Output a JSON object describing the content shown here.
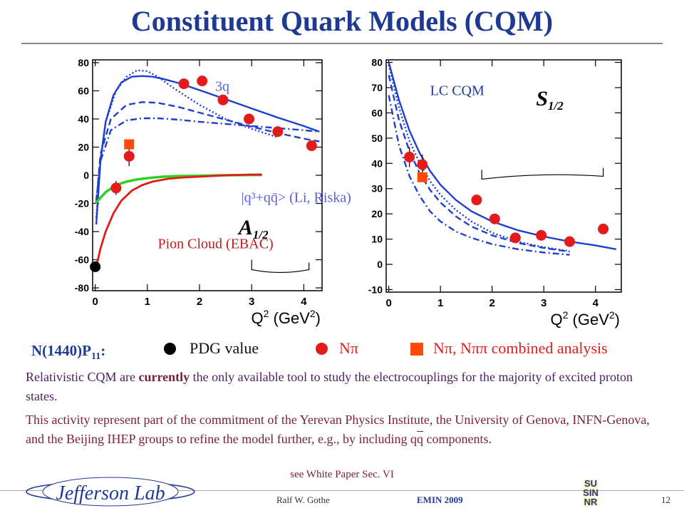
{
  "slide": {
    "title": "Constituent Quark Models (CQM)",
    "footer_author": "Ralf  W. Gothe",
    "footer_conf": "EMIN 2009",
    "footer_page": "12",
    "logo_text": "Jefferson Lab",
    "logo2_lines": [
      "SU",
      "SIN",
      "NR"
    ]
  },
  "legend": {
    "state_label": "N(1440)P",
    "state_sub": "11",
    "state_colon": ":",
    "pdg": "PDG value",
    "npi": "Nπ",
    "combined": "Nπ, Nππ combined analysis"
  },
  "text": {
    "para1_a": "Relativistic CQM are ",
    "para1_bold": "currently",
    "para1_b": " the only available tool to study the electrocouplings for the majority of excited proton states.",
    "para2_a": "This activity represent part of the commitment of the Yerevan Physics Institute, the University of Genova, INFN-Genova, and the Beijing IHEP groups to refine the model further, e.g., by including q",
    "para2_qbar": "q",
    "para2_b": " components.",
    "white_paper": "see White Paper Sec. VI"
  },
  "colors": {
    "title": "#1f3a93",
    "model": "#1f3fd0",
    "red": "#e31b1b",
    "green": "#2ed11b",
    "npipi": "#ff4a0a"
  },
  "chart_data": [
    {
      "type": "line",
      "amplitude": "A1/2",
      "amp_main": "A",
      "amp_sub": "1/2",
      "x_label": "Q",
      "x_sup": "2",
      "x_unit_pre": " (GeV",
      "x_unit_sup": "2",
      "x_unit_post": ")",
      "xlim": [
        -0.05,
        4.35
      ],
      "ylim": [
        -82,
        82
      ],
      "xticks": [
        0,
        1,
        2,
        3,
        4
      ],
      "yticks": [
        -80,
        -60,
        -40,
        -20,
        0,
        20,
        40,
        60,
        80
      ],
      "tick_labels_x": [
        "0",
        "1",
        "2",
        "3",
        "4"
      ],
      "tick_labels_y": [
        "-80",
        "-60",
        "-40",
        "-20",
        "0",
        "20",
        "40",
        "60",
        "80"
      ],
      "annotations": [
        {
          "text": "3q",
          "x": 6.5,
          "y": 60,
          "color": "#5a5ee0"
        },
        {
          "text": "|q³+qq̄> (Li, Riska)",
          "x": 2.8,
          "y": -19,
          "color": "#5a5ee0"
        },
        {
          "text": "Pion Cloud (EBAC)",
          "x": 1.2,
          "y": -52,
          "color": "#c01b1b"
        }
      ],
      "series": [
        {
          "style": "solid",
          "color": "#1f3fd0",
          "x": [
            0.02,
            0.1,
            0.2,
            0.35,
            0.5,
            0.7,
            0.9,
            1.1,
            1.3,
            1.6,
            2,
            2.5,
            3,
            3.5,
            4,
            4.3
          ],
          "y": [
            -35,
            10,
            38,
            57,
            66,
            70,
            70.5,
            70,
            68.5,
            65.5,
            60.5,
            54,
            47.5,
            41,
            35,
            31
          ]
        },
        {
          "style": "dotted",
          "color": "#1f3fd0",
          "x": [
            0.02,
            0.1,
            0.2,
            0.4,
            0.6,
            0.8,
            1,
            1.2,
            1.5,
            2,
            2.5,
            3,
            3.5
          ],
          "y": [
            -30,
            12,
            38,
            60,
            70,
            74.5,
            74,
            70,
            62,
            50,
            40,
            33,
            27
          ]
        },
        {
          "style": "dashed",
          "color": "#1f3fd0",
          "x": [
            0.02,
            0.1,
            0.3,
            0.6,
            0.9,
            1.2,
            1.6,
            2,
            2.5,
            3,
            3.5,
            4,
            4.3
          ],
          "y": [
            -20,
            15,
            40,
            50,
            52,
            51.5,
            48.5,
            44.5,
            39.5,
            34.5,
            30,
            26,
            24
          ]
        },
        {
          "style": "dashdot",
          "color": "#1f3fd0",
          "x": [
            0.02,
            0.1,
            0.3,
            0.6,
            0.9,
            1.2,
            1.6,
            2,
            2.5,
            3,
            3.5,
            4,
            4.3
          ],
          "y": [
            -18,
            10,
            32,
            39,
            40.5,
            40.5,
            39.5,
            38,
            36.5,
            35,
            33.5,
            32,
            31
          ]
        },
        {
          "style": "solid",
          "color": "#2ed11b",
          "width": 3.5,
          "x": [
            0,
            0.2,
            0.4,
            0.6,
            0.8,
            1,
            1.3,
            1.6,
            2,
            2.5,
            3,
            3.2
          ],
          "y": [
            -20,
            -12,
            -7,
            -4.5,
            -3,
            -2,
            -1,
            -0.5,
            -0.3,
            0,
            0.2,
            0.2
          ]
        },
        {
          "style": "solid",
          "color": "#e31b1b",
          "width": 2.8,
          "x": [
            0,
            0.1,
            0.2,
            0.35,
            0.5,
            0.7,
            0.9,
            1.1,
            1.4,
            1.7,
            2,
            2.5,
            3,
            3.2
          ],
          "y": [
            -68,
            -52,
            -40,
            -27,
            -18,
            -11,
            -7,
            -4.5,
            -2.5,
            -1.5,
            -1,
            0,
            0.5,
            0.5
          ]
        }
      ],
      "points_npi": [
        {
          "x": 0.4,
          "y": -9,
          "err": 5
        },
        {
          "x": 0.65,
          "y": 13.5,
          "err": 7
        },
        {
          "x": 1.7,
          "y": 65,
          "err": 2.5
        },
        {
          "x": 2.05,
          "y": 67,
          "err": 2.5
        },
        {
          "x": 2.45,
          "y": 53.5,
          "err": 2.5
        },
        {
          "x": 2.95,
          "y": 40,
          "err": 2.5
        },
        {
          "x": 3.5,
          "y": 31,
          "err": 2.5
        },
        {
          "x": 4.15,
          "y": 21,
          "err": 2.5
        }
      ],
      "points_combined": [
        {
          "x": 0.65,
          "y": 22
        }
      ],
      "points_pdg": [
        {
          "x": 0,
          "y": -65
        }
      ]
    },
    {
      "type": "line",
      "amplitude": "S1/2",
      "amp_main": "S",
      "amp_sub": "1/2",
      "x_label": "Q",
      "x_sup": "2",
      "x_unit_pre": " (GeV",
      "x_unit_sup": "2",
      "x_unit_post": ")",
      "xlim": [
        -0.05,
        4.5
      ],
      "ylim": [
        -11,
        81
      ],
      "xticks": [
        0,
        1,
        2,
        3,
        4
      ],
      "yticks": [
        -10,
        0,
        10,
        20,
        30,
        40,
        50,
        60,
        70,
        80
      ],
      "tick_labels_x": [
        "0",
        "1",
        "2",
        "3",
        "4"
      ],
      "tick_labels_y": [
        "-10",
        "0",
        "10",
        "20",
        "30",
        "40",
        "50",
        "60",
        "70",
        "80"
      ],
      "annotations": [
        {
          "text": "LC CQM",
          "x": 0.8,
          "y": 67,
          "color": "#1f3a93"
        }
      ],
      "series": [
        {
          "style": "solid",
          "color": "#1f3fd0",
          "x": [
            0,
            0.2,
            0.4,
            0.6,
            0.8,
            1,
            1.3,
            1.6,
            2,
            2.5,
            3,
            3.5,
            4,
            4.4
          ],
          "y": [
            80,
            65,
            53,
            44,
            37,
            31.5,
            25.5,
            21,
            17,
            13.5,
            11,
            9,
            7.5,
            6
          ]
        },
        {
          "style": "dotted",
          "color": "#1f3fd0",
          "x": [
            0,
            0.2,
            0.4,
            0.6,
            0.8,
            1,
            1.3,
            1.6,
            2,
            2.5,
            3,
            3.5
          ],
          "y": [
            79,
            62,
            49,
            40,
            33,
            27.5,
            21.5,
            17,
            12.5,
            9,
            6.8,
            5.2
          ]
        },
        {
          "style": "dashed",
          "color": "#1f3fd0",
          "x": [
            0,
            0.2,
            0.4,
            0.6,
            0.8,
            1,
            1.3,
            1.6,
            2,
            2.5,
            3,
            3.5
          ],
          "y": [
            75,
            57,
            45,
            36,
            29.5,
            24.5,
            19,
            15,
            11.5,
            8.5,
            6.5,
            5
          ]
        },
        {
          "style": "dashdot",
          "color": "#1f3fd0",
          "x": [
            0,
            0.2,
            0.4,
            0.6,
            0.8,
            1,
            1.3,
            1.6,
            2,
            2.5,
            3,
            3.5
          ],
          "y": [
            67,
            47,
            35,
            27,
            21,
            17,
            13,
            10.5,
            8,
            6,
            4.7,
            3.8
          ]
        }
      ],
      "points_npi": [
        {
          "x": 0.4,
          "y": 42.5,
          "err": 4
        },
        {
          "x": 0.65,
          "y": 39.5,
          "err": 4
        },
        {
          "x": 1.7,
          "y": 25.5,
          "err": 1.8
        },
        {
          "x": 2.05,
          "y": 18,
          "err": 1.8
        },
        {
          "x": 2.45,
          "y": 10.5,
          "err": 1.8
        },
        {
          "x": 2.95,
          "y": 11.5,
          "err": 1.8
        },
        {
          "x": 3.5,
          "y": 9,
          "err": 1.8
        },
        {
          "x": 4.15,
          "y": 14,
          "err": 1.8
        }
      ],
      "points_combined": [
        {
          "x": 0.65,
          "y": 34.5
        }
      ],
      "points_pdg": []
    }
  ]
}
